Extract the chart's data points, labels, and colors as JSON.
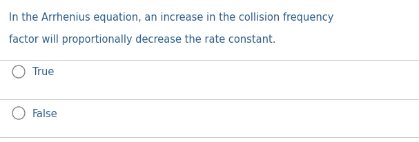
{
  "question_line1": "In the Arrhenius equation, an increase in the collision frequency",
  "question_line2": "factor will proportionally decrease the rate constant.",
  "option1": "True",
  "option2": "False",
  "text_color": "#2e5f8a",
  "bg_color": "#ffffff",
  "divider_color": "#cccccc",
  "question_fontsize": 10.5,
  "option_fontsize": 10.5,
  "circle_color": "#808080",
  "fig_width": 6.07,
  "fig_height": 2.07,
  "dpi": 100
}
